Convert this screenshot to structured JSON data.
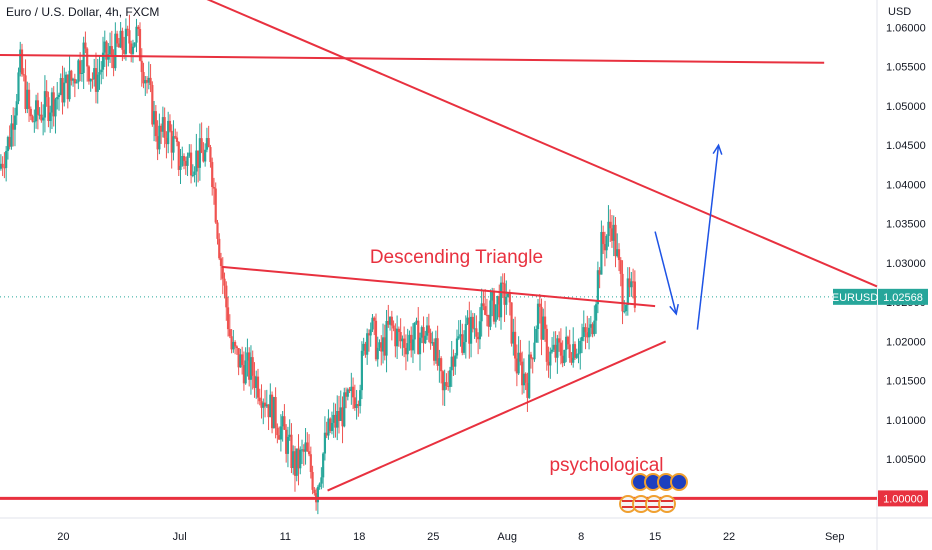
{
  "header": {
    "title": "Euro / U.S. Dollar, 4h, FXCM"
  },
  "price_axis": {
    "currency": "USD"
  },
  "colors": {
    "up": "#26a69a",
    "down": "#ef5350",
    "drawing": "#e8313f",
    "arrow": "#1e53e5",
    "tag_bg": "#26a69a"
  },
  "chart_data": {
    "type": "candlestick",
    "symbol": "EURUSD",
    "timeframe": "4h",
    "title": "Euro / U.S. Dollar, 4h, FXCM",
    "xlabel": "",
    "ylabel": "USD",
    "ylim": [
      0.9975,
      1.0635
    ],
    "xlim": [
      "2022-06-14",
      "2022-09-05"
    ],
    "grid": false,
    "y_ticks": [
      "1.06000",
      "1.05500",
      "1.05000",
      "1.04500",
      "1.04000",
      "1.03500",
      "1.03000",
      "1.02500",
      "1.02000",
      "1.01500",
      "1.01000",
      "1.00500"
    ],
    "x_ticks": [
      {
        "label": "20",
        "date": "2022-06-20"
      },
      {
        "label": "Jul",
        "date": "2022-07-01"
      },
      {
        "label": "11",
        "date": "2022-07-11"
      },
      {
        "label": "18",
        "date": "2022-07-18"
      },
      {
        "label": "25",
        "date": "2022-07-25"
      },
      {
        "label": "Aug",
        "date": "2022-08-01"
      },
      {
        "label": "8",
        "date": "2022-08-08"
      },
      {
        "label": "15",
        "date": "2022-08-15"
      },
      {
        "label": "22",
        "date": "2022-08-22"
      },
      {
        "label": "Sep",
        "date": "2022-09-01"
      }
    ],
    "last_price": {
      "symbol": "EURUSD",
      "value": "1.02568",
      "numeric": 1.02568
    },
    "level_tag": {
      "value": "1.00000",
      "numeric": 1.0
    },
    "ohlc_path": [
      [
        "2022-06-14",
        1.042
      ],
      [
        "2022-06-15",
        1.046
      ],
      [
        "2022-06-16",
        1.055
      ],
      [
        "2022-06-17",
        1.048
      ],
      [
        "2022-06-20",
        1.052
      ],
      [
        "2022-06-21",
        1.0535
      ],
      [
        "2022-06-22",
        1.057
      ],
      [
        "2022-06-23",
        1.053
      ],
      [
        "2022-06-24",
        1.056
      ],
      [
        "2022-06-27",
        1.059
      ],
      [
        "2022-06-28",
        1.053
      ],
      [
        "2022-06-29",
        1.046
      ],
      [
        "2022-06-30",
        1.047
      ],
      [
        "2022-07-01",
        1.043
      ],
      [
        "2022-07-04",
        1.044
      ],
      [
        "2022-07-05",
        1.03
      ],
      [
        "2022-07-06",
        1.019
      ],
      [
        "2022-07-07",
        1.017
      ],
      [
        "2022-07-08",
        1.016
      ],
      [
        "2022-07-11",
        1.008
      ],
      [
        "2022-07-12",
        1.004
      ],
      [
        "2022-07-13",
        1.006
      ],
      [
        "2022-07-14",
        1.001
      ],
      [
        "2022-07-15",
        1.008
      ],
      [
        "2022-07-18",
        1.014
      ],
      [
        "2022-07-19",
        1.023
      ],
      [
        "2022-07-20",
        1.018
      ],
      [
        "2022-07-21",
        1.022
      ],
      [
        "2022-07-22",
        1.02
      ],
      [
        "2022-07-25",
        1.021
      ],
      [
        "2022-07-26",
        1.013
      ],
      [
        "2022-07-27",
        1.019
      ],
      [
        "2022-07-28",
        1.021
      ],
      [
        "2022-07-29",
        1.022
      ],
      [
        "2022-08-01",
        1.026
      ],
      [
        "2022-08-02",
        1.017
      ],
      [
        "2022-08-03",
        1.015
      ],
      [
        "2022-08-04",
        1.024
      ],
      [
        "2022-08-05",
        1.018
      ],
      [
        "2022-08-08",
        1.02
      ],
      [
        "2022-08-09",
        1.021
      ],
      [
        "2022-08-10",
        1.032
      ],
      [
        "2022-08-11",
        1.035
      ],
      [
        "2022-08-12",
        1.026
      ],
      [
        "2022-08-13",
        1.02568
      ]
    ],
    "series": [
      {
        "name": "EURUSD",
        "values": []
      }
    ],
    "annotations": [
      {
        "text": "Descending Triangle",
        "date": "2022-07-19",
        "value": 1.03
      },
      {
        "text": "psychological",
        "date": "2022-08-05",
        "value": 1.0035
      }
    ],
    "lines": [
      {
        "kind": "horizontal",
        "from": "2022-06-14",
        "to": "2022-08-31",
        "y_from": 1.0565,
        "y_to": 1.0555
      },
      {
        "kind": "trend",
        "from": "2022-06-26",
        "to": "2022-09-05",
        "y_from": 1.068,
        "y_to": 1.027
      },
      {
        "kind": "triangle-top",
        "from": "2022-07-05",
        "to": "2022-08-15",
        "y_from": 1.0295,
        "y_to": 1.0245
      },
      {
        "kind": "triangle-bottom",
        "from": "2022-07-15",
        "to": "2022-08-16",
        "y_from": 1.001,
        "y_to": 1.02
      },
      {
        "kind": "level",
        "from": "2022-06-14",
        "to": "2022-09-05",
        "y_from": 1.0,
        "y_to": 1.0
      }
    ],
    "arrows": [
      {
        "from_date": "2022-08-15",
        "from_value": 1.034,
        "to_date": "2022-08-17",
        "to_value": 1.0235
      },
      {
        "from_date": "2022-08-19",
        "from_value": 1.0215,
        "to_date": "2022-08-21",
        "to_value": 1.045
      }
    ],
    "icons": [
      "eu-flag-icon",
      "us-flag-icon"
    ]
  }
}
